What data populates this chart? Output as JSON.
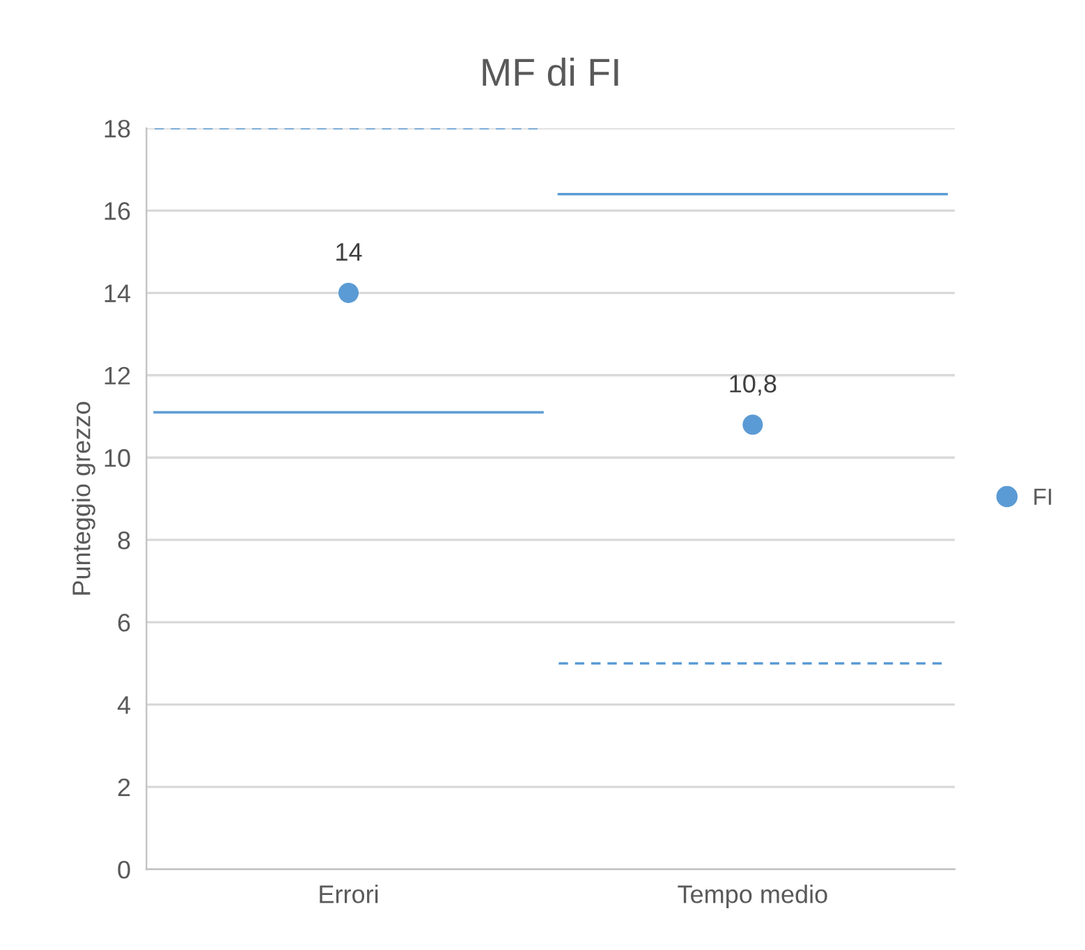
{
  "chart_data": {
    "type": "scatter",
    "title": "MF di FI",
    "ylabel": "Punteggio grezzo",
    "categories": [
      "Errori",
      "Tempo medio"
    ],
    "series": [
      {
        "name": "FI",
        "color": "#5b9bd5",
        "values": [
          14,
          10.8
        ],
        "value_labels": [
          "14",
          "10,8"
        ]
      }
    ],
    "ref_lines": [
      {
        "axis": "y",
        "value": 18,
        "color": "#5b9bd5",
        "line_style": "dashed"
      },
      {
        "axis": "y",
        "value": 11.1,
        "color": "#5b9bd5",
        "line_style": "solid"
      },
      {
        "axis": "y",
        "value": 16.4,
        "color": "#5b9bd5",
        "line_style": "solid"
      },
      {
        "axis": "y",
        "value": 5,
        "color": "#5b9bd5",
        "line_style": "dashed"
      }
    ],
    "marker": "circle",
    "ylim": [
      0,
      18
    ],
    "yticks": [
      0,
      2,
      4,
      6,
      8,
      10,
      12,
      14,
      16,
      18
    ],
    "grid": "y",
    "legend": "right"
  }
}
